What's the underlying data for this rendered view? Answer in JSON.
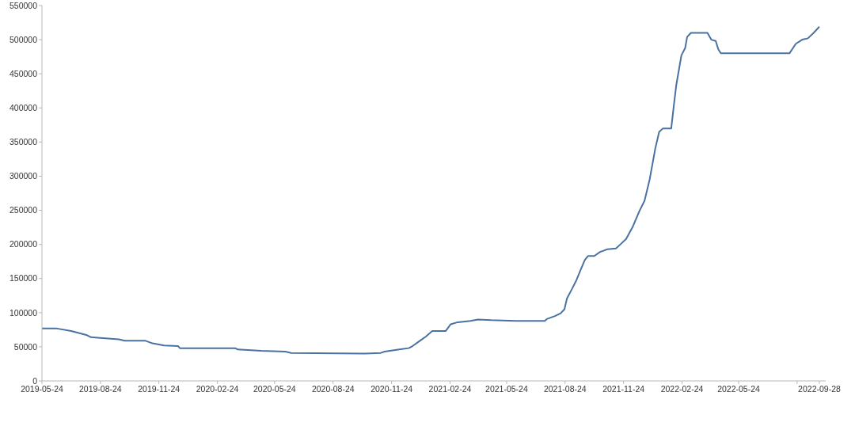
{
  "chart_data": {
    "type": "line",
    "x": [
      "2019-05-24",
      "2019-06-15",
      "2019-07-09",
      "2019-08-03",
      "2019-08-09",
      "2019-08-24",
      "2019-09-22",
      "2019-10-01",
      "2019-11-02",
      "2019-11-14",
      "2019-12-02",
      "2019-12-24",
      "2019-12-27",
      "2020-03-23",
      "2020-03-27",
      "2020-05-03",
      "2020-06-10",
      "2020-06-19",
      "2020-10-13",
      "2020-11-07",
      "2020-11-13",
      "2020-12-06",
      "2020-12-21",
      "2020-12-27",
      "2021-01-08",
      "2021-01-17",
      "2021-01-27",
      "2021-02-17",
      "2021-02-21",
      "2021-02-25",
      "2021-03-08",
      "2021-03-28",
      "2021-04-09",
      "2021-04-30",
      "2021-06-07",
      "2021-07-23",
      "2021-07-27",
      "2021-08-08",
      "2021-08-17",
      "2021-08-23",
      "2021-08-27",
      "2021-09-04",
      "2021-09-11",
      "2021-09-18",
      "2021-09-24",
      "2021-09-29",
      "2021-10-09",
      "2021-10-18",
      "2021-10-30",
      "2021-11-12",
      "2021-11-19",
      "2021-11-28",
      "2021-12-08",
      "2021-12-19",
      "2021-12-27",
      "2022-01-04",
      "2022-01-13",
      "2022-01-19",
      "2022-01-25",
      "2022-02-07",
      "2022-02-11",
      "2022-02-15",
      "2022-02-23",
      "2022-03-01",
      "2022-03-04",
      "2022-03-10",
      "2022-04-05",
      "2022-04-11",
      "2022-04-18",
      "2022-04-22",
      "2022-04-26",
      "2022-08-12",
      "2022-08-22",
      "2022-09-01",
      "2022-09-10",
      "2022-09-19",
      "2022-09-28"
    ],
    "series": [
      {
        "color": "#4a72a0",
        "values": [
          77000,
          77000,
          73000,
          67000,
          64000,
          63000,
          61000,
          59000,
          59000,
          55000,
          52000,
          51000,
          48000,
          48000,
          46000,
          44000,
          43000,
          41000,
          40000,
          41000,
          43000,
          46000,
          48000,
          51000,
          59000,
          65000,
          73000,
          73000,
          78000,
          83000,
          86000,
          88000,
          90000,
          89000,
          88000,
          88000,
          91000,
          95000,
          99000,
          105000,
          121000,
          135000,
          148000,
          164000,
          177000,
          183000,
          183000,
          189000,
          193000,
          194000,
          200000,
          208000,
          225000,
          249000,
          264000,
          295000,
          341000,
          365000,
          370000,
          370000,
          403000,
          434000,
          477000,
          488000,
          504000,
          510000,
          510000,
          500000,
          498000,
          486000,
          480000,
          480000,
          494000,
          500000,
          502000,
          510000,
          519000
        ]
      }
    ],
    "xlim": [
      "2019-05-24",
      "2022-10-08"
    ],
    "xticks": [
      "2019-05-24",
      "2019-08-24",
      "2019-11-24",
      "2020-02-24",
      "2020-05-24",
      "2020-08-24",
      "2020-11-24",
      "2021-02-24",
      "2021-05-24",
      "2021-08-24",
      "2021-11-24",
      "2022-02-24",
      "2022-05-24",
      {
        "value": "2022-08-24",
        "label": null
      },
      "2022-09-28"
    ],
    "ylim": [
      0,
      550000
    ],
    "yticks": [
      0,
      50000,
      100000,
      150000,
      200000,
      250000,
      300000,
      350000,
      400000,
      450000,
      500000,
      550000
    ]
  }
}
